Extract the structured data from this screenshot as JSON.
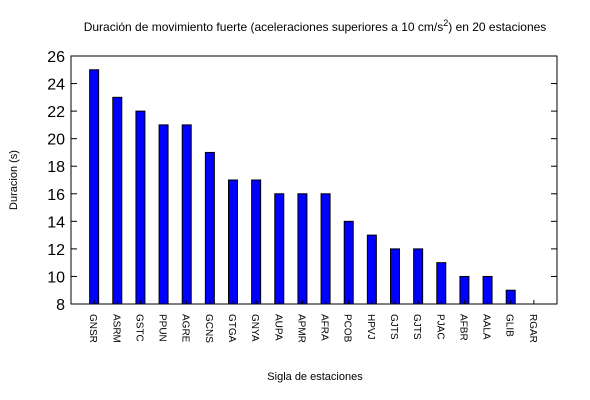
{
  "chart_data": {
    "type": "bar",
    "title": "Duración de movimiento fuerte (aceleraciones superiores a 10 cm/s",
    "title_superscript": "2",
    "title_suffix": ") en 20 estaciones",
    "xlabel": "Sigla de estaciones",
    "ylabel": "Duracion (s)",
    "ylim": [
      8,
      26
    ],
    "yticks": [
      8,
      10,
      12,
      14,
      16,
      18,
      20,
      22,
      24,
      26
    ],
    "grid": false,
    "legend": "none",
    "bar_color": "#0000ff",
    "categories": [
      "GNSR",
      "ASRM",
      "GSTC",
      "PPUN",
      "AGRE",
      "GCNS",
      "GTGA",
      "GNYA",
      "AUPA",
      "APMR",
      "AFRA",
      "PCOB",
      "HPVJ",
      "GJTS",
      "GJTS",
      "PJAC",
      "AFBR",
      "AALA",
      "GLIB",
      "RGAR"
    ],
    "values": [
      25,
      23,
      22,
      21,
      21,
      19,
      17,
      17,
      16,
      16,
      16,
      14,
      13,
      12,
      12,
      11,
      10,
      10,
      9,
      8
    ]
  }
}
